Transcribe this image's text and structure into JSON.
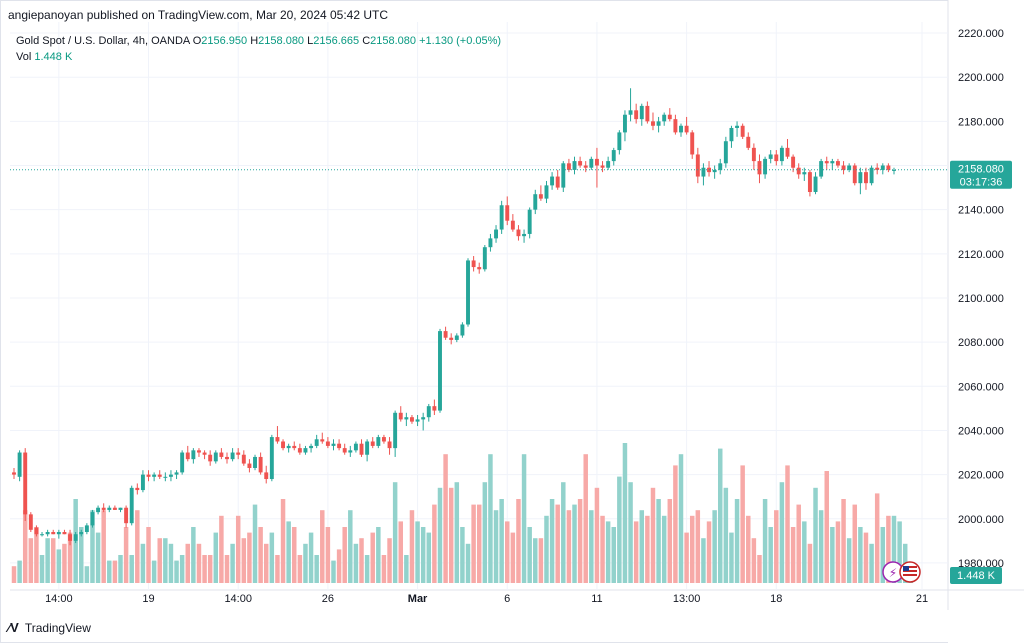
{
  "header": {
    "publish_line": "angiepanoyan published on TradingView.com, Mar 20, 2024 05:42 UTC"
  },
  "legend": {
    "symbol": "Gold Spot / U.S. Dollar, 4h, OANDA",
    "o_label": "O",
    "o_value": "2156.950",
    "h_label": "H",
    "h_value": "2158.080",
    "l_label": "L",
    "l_value": "2156.665",
    "c_label": "C",
    "c_value": "2158.080",
    "change": "+1.130 (+0.05%)",
    "vol_label": "Vol",
    "vol_value": "1.448 K"
  },
  "price_axis": {
    "ticks": [
      "2220.000",
      "2200.000",
      "2180.000",
      "2160.000",
      "2140.000",
      "2120.000",
      "2100.000",
      "2080.000",
      "2060.000",
      "2040.000",
      "2020.000",
      "2000.000",
      "1980.000"
    ],
    "current_price_label": "2158.080",
    "countdown_label": "03:17:36",
    "volume_label": "1.448 K"
  },
  "time_axis": {
    "labels": [
      "14:00",
      "19",
      "14:00",
      "26",
      "Mar",
      "6",
      "11",
      "13:00",
      "18",
      "21"
    ]
  },
  "footer": {
    "brand": "TradingView"
  },
  "colors": {
    "up": "#26a69a",
    "down": "#ef5350",
    "up_vol": "#92d2cc",
    "down_vol": "#f7a9a7",
    "grid": "#f0f3fa",
    "axis_text": "#131722"
  },
  "chart_data": {
    "type": "candlestick",
    "title": "Gold Spot / U.S. Dollar, 4h, OANDA",
    "ylim": [
      1970,
      2225
    ],
    "current_price": 2158.08,
    "series": [
      {
        "name": "price",
        "candles": [
          [
            2021,
            2023,
            2018,
            2020
          ],
          [
            2019,
            2031,
            2017,
            2030
          ],
          [
            2030,
            2032,
            1999,
            2002
          ],
          [
            2002,
            2003,
            1994,
            1995
          ],
          [
            1996,
            1997,
            1992,
            1993
          ],
          [
            1993,
            1994,
            1992,
            1993
          ],
          [
            1993,
            1995,
            1992,
            1994
          ],
          [
            1994,
            1995,
            1993,
            1993
          ],
          [
            1993,
            1995,
            1991,
            1994
          ],
          [
            1994,
            1995,
            1993,
            1993
          ],
          [
            1993,
            1995,
            1988,
            1990
          ],
          [
            1990,
            1994,
            1989,
            1993
          ],
          [
            1993,
            1995,
            1992,
            1994
          ],
          [
            1994,
            1998,
            1993,
            1997
          ],
          [
            1997,
            2004,
            1996,
            2003
          ],
          [
            2003,
            2006,
            2002,
            2005
          ],
          [
            2005,
            2007,
            2003,
            2004
          ],
          [
            2004,
            2006,
            2003,
            2005
          ],
          [
            2005,
            2006,
            2004,
            2004
          ],
          [
            2004,
            2005,
            2003,
            2005
          ],
          [
            2005,
            2006,
            1996,
            1998
          ],
          [
            1998,
            2015,
            1997,
            2014
          ],
          [
            2014,
            2016,
            2011,
            2013
          ],
          [
            2013,
            2022,
            2012,
            2020
          ],
          [
            2020,
            2022,
            2017,
            2019
          ],
          [
            2019,
            2021,
            2017,
            2020
          ],
          [
            2020,
            2022,
            2018,
            2019
          ],
          [
            2019,
            2021,
            2017,
            2019
          ],
          [
            2019,
            2022,
            2017,
            2020
          ],
          [
            2020,
            2022,
            2018,
            2021
          ],
          [
            2021,
            2031,
            2020,
            2030
          ],
          [
            2030,
            2033,
            2026,
            2027
          ],
          [
            2027,
            2032,
            2025,
            2031
          ],
          [
            2031,
            2032,
            2028,
            2030
          ],
          [
            2030,
            2031,
            2027,
            2029
          ],
          [
            2029,
            2031,
            2024,
            2026
          ],
          [
            2026,
            2031,
            2025,
            2030
          ],
          [
            2030,
            2032,
            2027,
            2028
          ],
          [
            2028,
            2030,
            2025,
            2027
          ],
          [
            2027,
            2032,
            2026,
            2030
          ],
          [
            2030,
            2032,
            2027,
            2029
          ],
          [
            2029,
            2031,
            2024,
            2025
          ],
          [
            2025,
            2027,
            2021,
            2023
          ],
          [
            2023,
            2029,
            2022,
            2028
          ],
          [
            2028,
            2030,
            2020,
            2021
          ],
          [
            2021,
            2024,
            2016,
            2018
          ],
          [
            2018,
            2038,
            2017,
            2037
          ],
          [
            2037,
            2042,
            2034,
            2035
          ],
          [
            2035,
            2036,
            2031,
            2032
          ],
          [
            2032,
            2034,
            2030,
            2033
          ],
          [
            2033,
            2035,
            2031,
            2032
          ],
          [
            2032,
            2034,
            2029,
            2030
          ],
          [
            2030,
            2033,
            2029,
            2032
          ],
          [
            2032,
            2034,
            2030,
            2033
          ],
          [
            2033,
            2038,
            2032,
            2036
          ],
          [
            2036,
            2039,
            2034,
            2035
          ],
          [
            2035,
            2037,
            2032,
            2033
          ],
          [
            2033,
            2036,
            2031,
            2034
          ],
          [
            2034,
            2036,
            2031,
            2032
          ],
          [
            2032,
            2034,
            2029,
            2030
          ],
          [
            2030,
            2033,
            2028,
            2031
          ],
          [
            2031,
            2035,
            2030,
            2034
          ],
          [
            2034,
            2036,
            2028,
            2029
          ],
          [
            2029,
            2036,
            2026,
            2035
          ],
          [
            2035,
            2037,
            2032,
            2033
          ],
          [
            2033,
            2038,
            2032,
            2037
          ],
          [
            2037,
            2038,
            2034,
            2035
          ],
          [
            2035,
            2037,
            2029,
            2032
          ],
          [
            2032,
            2049,
            2028,
            2048
          ],
          [
            2048,
            2051,
            2044,
            2045
          ],
          [
            2045,
            2048,
            2042,
            2046
          ],
          [
            2046,
            2047,
            2043,
            2044
          ],
          [
            2044,
            2047,
            2042,
            2045
          ],
          [
            2045,
            2048,
            2040,
            2046
          ],
          [
            2046,
            2052,
            2044,
            2051
          ],
          [
            2051,
            2054,
            2047,
            2049
          ],
          [
            2049,
            2086,
            2048,
            2085
          ],
          [
            2085,
            2087,
            2081,
            2082
          ],
          [
            2082,
            2084,
            2079,
            2081
          ],
          [
            2081,
            2084,
            2080,
            2083
          ],
          [
            2083,
            2089,
            2082,
            2088
          ],
          [
            2088,
            2118,
            2087,
            2117
          ],
          [
            2117,
            2119,
            2112,
            2114
          ],
          [
            2114,
            2116,
            2111,
            2113
          ],
          [
            2113,
            2124,
            2112,
            2123
          ],
          [
            2123,
            2129,
            2121,
            2127
          ],
          [
            2127,
            2133,
            2125,
            2131
          ],
          [
            2131,
            2144,
            2129,
            2142
          ],
          [
            2142,
            2146,
            2133,
            2135
          ],
          [
            2135,
            2138,
            2130,
            2131
          ],
          [
            2131,
            2133,
            2126,
            2128
          ],
          [
            2128,
            2131,
            2125,
            2129
          ],
          [
            2129,
            2141,
            2127,
            2140
          ],
          [
            2140,
            2149,
            2138,
            2147
          ],
          [
            2147,
            2151,
            2144,
            2145
          ],
          [
            2145,
            2153,
            2143,
            2151
          ],
          [
            2151,
            2157,
            2149,
            2155
          ],
          [
            2155,
            2158,
            2149,
            2150
          ],
          [
            2150,
            2162,
            2148,
            2161
          ],
          [
            2161,
            2163,
            2157,
            2158
          ],
          [
            2158,
            2164,
            2156,
            2162
          ],
          [
            2162,
            2164,
            2159,
            2160
          ],
          [
            2160,
            2162,
            2157,
            2159
          ],
          [
            2159,
            2164,
            2158,
            2163
          ],
          [
            2163,
            2168,
            2150,
            2160
          ],
          [
            2160,
            2162,
            2157,
            2159
          ],
          [
            2159,
            2164,
            2158,
            2162
          ],
          [
            2162,
            2168,
            2160,
            2167
          ],
          [
            2167,
            2176,
            2165,
            2175
          ],
          [
            2175,
            2185,
            2171,
            2183
          ],
          [
            2183,
            2195,
            2180,
            2185
          ],
          [
            2185,
            2188,
            2179,
            2181
          ],
          [
            2181,
            2188,
            2178,
            2187
          ],
          [
            2187,
            2189,
            2179,
            2180
          ],
          [
            2180,
            2184,
            2176,
            2178
          ],
          [
            2178,
            2182,
            2175,
            2180
          ],
          [
            2180,
            2184,
            2178,
            2183
          ],
          [
            2183,
            2186,
            2180,
            2181
          ],
          [
            2181,
            2183,
            2174,
            2175
          ],
          [
            2175,
            2179,
            2173,
            2178
          ],
          [
            2178,
            2182,
            2174,
            2175
          ],
          [
            2175,
            2176,
            2163,
            2165
          ],
          [
            2165,
            2168,
            2152,
            2155
          ],
          [
            2155,
            2161,
            2151,
            2159
          ],
          [
            2159,
            2162,
            2155,
            2157
          ],
          [
            2157,
            2160,
            2154,
            2158
          ],
          [
            2158,
            2163,
            2156,
            2161
          ],
          [
            2161,
            2173,
            2159,
            2171
          ],
          [
            2171,
            2178,
            2168,
            2177
          ],
          [
            2177,
            2180,
            2173,
            2178
          ],
          [
            2178,
            2179,
            2172,
            2173
          ],
          [
            2173,
            2175,
            2167,
            2168
          ],
          [
            2168,
            2170,
            2158,
            2162
          ],
          [
            2162,
            2165,
            2152,
            2156
          ],
          [
            2156,
            2164,
            2154,
            2163
          ],
          [
            2163,
            2167,
            2161,
            2165
          ],
          [
            2165,
            2167,
            2160,
            2162
          ],
          [
            2162,
            2169,
            2160,
            2168
          ],
          [
            2168,
            2172,
            2163,
            2164
          ],
          [
            2164,
            2165,
            2157,
            2159
          ],
          [
            2159,
            2161,
            2154,
            2156
          ],
          [
            2156,
            2159,
            2153,
            2157
          ],
          [
            2157,
            2158,
            2146,
            2148
          ],
          [
            2148,
            2157,
            2147,
            2155
          ],
          [
            2155,
            2163,
            2154,
            2162
          ],
          [
            2162,
            2164,
            2158,
            2161
          ],
          [
            2161,
            2163,
            2158,
            2162
          ],
          [
            2162,
            2163,
            2159,
            2160
          ],
          [
            2160,
            2162,
            2156,
            2158
          ],
          [
            2158,
            2161,
            2157,
            2160
          ],
          [
            2160,
            2161,
            2151,
            2152
          ],
          [
            2152,
            2159,
            2147,
            2157
          ],
          [
            2157,
            2159,
            2149,
            2152
          ],
          [
            2152,
            2160,
            2151,
            2159
          ],
          [
            2159,
            2161,
            2156,
            2158
          ],
          [
            2158,
            2161,
            2156,
            2160
          ],
          [
            2160,
            2161,
            2157,
            2158
          ],
          [
            2158,
            2159,
            2156,
            2158
          ]
        ]
      },
      {
        "name": "volume",
        "values": [
          6,
          8,
          26,
          16,
          20,
          10,
          16,
          16,
          12,
          14,
          18,
          30,
          20,
          6,
          26,
          18,
          26,
          8,
          8,
          10,
          20,
          10,
          26,
          14,
          20,
          8,
          16,
          16,
          14,
          8,
          10,
          14,
          20,
          14,
          10,
          10,
          18,
          24,
          10,
          14,
          24,
          16,
          18,
          28,
          20,
          14,
          18,
          10,
          30,
          22,
          20,
          10,
          14,
          18,
          10,
          26,
          20,
          8,
          12,
          20,
          26,
          14,
          16,
          10,
          18,
          20,
          10,
          16,
          36,
          22,
          10,
          26,
          22,
          20,
          18,
          28,
          34,
          46,
          34,
          36,
          20,
          14,
          28,
          28,
          36,
          46,
          26,
          30,
          22,
          18,
          30,
          46,
          20,
          16,
          16,
          24,
          30,
          28,
          36,
          26,
          28,
          30,
          46,
          26,
          34,
          24,
          22,
          20,
          38,
          50,
          36,
          22,
          26,
          24,
          34,
          30,
          24,
          30,
          42,
          46,
          18,
          24,
          26,
          16,
          22,
          26,
          48,
          34,
          18,
          30,
          42,
          24,
          16,
          10,
          30,
          20,
          26,
          36,
          42,
          20,
          28,
          22,
          14,
          34,
          26,
          40,
          20,
          22,
          30,
          16,
          28,
          20,
          18,
          14,
          32,
          20,
          24,
          24,
          22,
          14,
          6
        ]
      }
    ]
  }
}
